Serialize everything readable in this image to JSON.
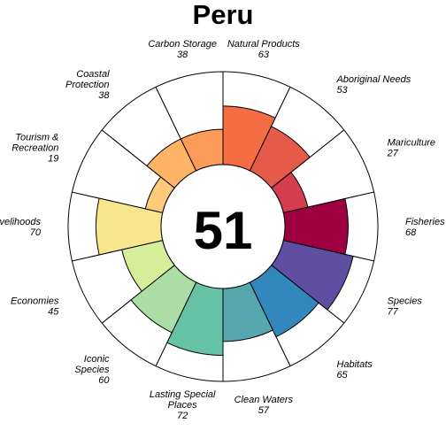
{
  "chart_data": {
    "type": "polar-bar",
    "title": "Peru",
    "center_score": "51",
    "value_max": 100,
    "categories": [
      {
        "name_lines": [
          "Natural Products"
        ],
        "value": 63,
        "color": "#F46D43"
      },
      {
        "name_lines": [
          "Aboriginal Needs"
        ],
        "value": 53,
        "color": "#E55A48"
      },
      {
        "name_lines": [
          "Mariculture"
        ],
        "value": 27,
        "color": "#D53E4F"
      },
      {
        "name_lines": [
          "Fisheries"
        ],
        "value": 68,
        "color": "#9E0142"
      },
      {
        "name_lines": [
          "Species"
        ],
        "value": 77,
        "color": "#5E4FA2"
      },
      {
        "name_lines": [
          "Habitats"
        ],
        "value": 65,
        "color": "#3288BD"
      },
      {
        "name_lines": [
          "Clean Waters"
        ],
        "value": 57,
        "color": "#56A8AE"
      },
      {
        "name_lines": [
          "Lasting Special",
          "Places"
        ],
        "value": 72,
        "color": "#66C2A5"
      },
      {
        "name_lines": [
          "Iconic",
          "Species"
        ],
        "value": 60,
        "color": "#ABDDA4"
      },
      {
        "name_lines": [
          "Economies"
        ],
        "value": 45,
        "color": "#D5EE9A"
      },
      {
        "name_lines": [
          "Livelihoods"
        ],
        "value": 70,
        "color": "#F8E68F"
      },
      {
        "name_lines": [
          "Tourism &",
          "Recreation"
        ],
        "value": 19,
        "color": "#FDCA7A"
      },
      {
        "name_lines": [
          "Coastal",
          "Protection"
        ],
        "value": 38,
        "color": "#FDB466"
      },
      {
        "name_lines": [
          "Carbon Storage"
        ],
        "value": 38,
        "color": "#FB9A59"
      }
    ]
  }
}
